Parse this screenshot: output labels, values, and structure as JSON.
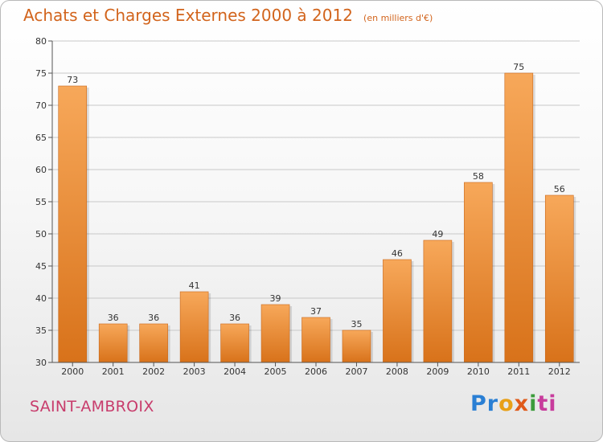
{
  "chart_data": {
    "type": "bar",
    "title": "Achats et Charges Externes 2000 à 2012",
    "subtitle": "(en milliers d'€)",
    "categories": [
      "2000",
      "2001",
      "2002",
      "2003",
      "2004",
      "2005",
      "2006",
      "2007",
      "2008",
      "2009",
      "2010",
      "2011",
      "2012"
    ],
    "values": [
      73,
      36,
      36,
      41,
      36,
      39,
      37,
      35,
      46,
      49,
      58,
      75,
      56
    ],
    "ylim": [
      30,
      80
    ],
    "yticks": [
      30,
      35,
      40,
      45,
      50,
      55,
      60,
      65,
      70,
      75,
      80
    ],
    "xlabel": "",
    "ylabel": "",
    "grid": true,
    "colors": {
      "bar_light": "#f7a85a",
      "bar_dark": "#d8721a",
      "bar_edge": "#c8681c",
      "grid": "#c8c8c8",
      "axis": "#555555",
      "label": "#333333"
    }
  },
  "footer": {
    "commune": "SAINT-AMBROIX",
    "logo": [
      "Pr",
      "o",
      "x",
      "i",
      "ti"
    ]
  }
}
